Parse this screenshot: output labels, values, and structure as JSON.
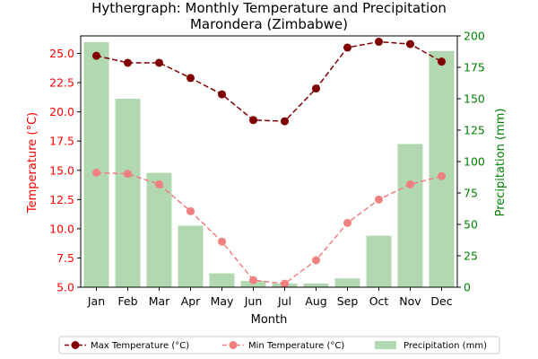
{
  "chart_data": {
    "type": "bar+line",
    "title_line1": "Hythergraph: Monthly Temperature and Precipitation",
    "title_line2": "Marondera (Zimbabwe)",
    "xlabel": "Month",
    "ylabel_left": "Temperature (°C)",
    "ylabel_right": "Precipitation (mm)",
    "categories": [
      "Jan",
      "Feb",
      "Mar",
      "Apr",
      "May",
      "Jun",
      "Jul",
      "Aug",
      "Sep",
      "Oct",
      "Nov",
      "Dec"
    ],
    "ylim_left": [
      5.0,
      26.5
    ],
    "ylim_right": [
      0,
      200
    ],
    "left_ticks": [
      5.0,
      7.5,
      10.0,
      12.5,
      15.0,
      17.5,
      20.0,
      22.5,
      25.0
    ],
    "left_tick_labels": [
      "5.0",
      "7.5",
      "10.0",
      "12.5",
      "15.0",
      "17.5",
      "20.0",
      "22.5",
      "25.0"
    ],
    "right_ticks": [
      0,
      25,
      50,
      75,
      100,
      125,
      150,
      175,
      200
    ],
    "right_tick_labels": [
      "0",
      "25",
      "50",
      "75",
      "100",
      "125",
      "150",
      "175",
      "200"
    ],
    "series": [
      {
        "name": "Max Temperature (°C)",
        "kind": "line",
        "axis": "left",
        "color": "#800000",
        "values": [
          24.8,
          24.2,
          24.2,
          22.9,
          21.5,
          19.3,
          19.2,
          22.0,
          25.5,
          26.0,
          25.8,
          24.3
        ]
      },
      {
        "name": "Min Temperature (°C)",
        "kind": "line",
        "axis": "left",
        "color": "#f08080",
        "values": [
          14.8,
          14.7,
          13.8,
          11.5,
          8.9,
          5.6,
          5.3,
          7.3,
          10.5,
          12.5,
          13.8,
          14.5
        ]
      },
      {
        "name": "Precipitation (mm)",
        "kind": "bar",
        "axis": "right",
        "color": "#b2d8b2",
        "values": [
          195,
          150,
          91,
          49,
          11,
          5,
          3,
          3,
          7,
          41,
          114,
          188
        ]
      }
    ],
    "left_axis_color": "#ff0000",
    "right_axis_color": "#008000",
    "legend_position": "bottom"
  }
}
